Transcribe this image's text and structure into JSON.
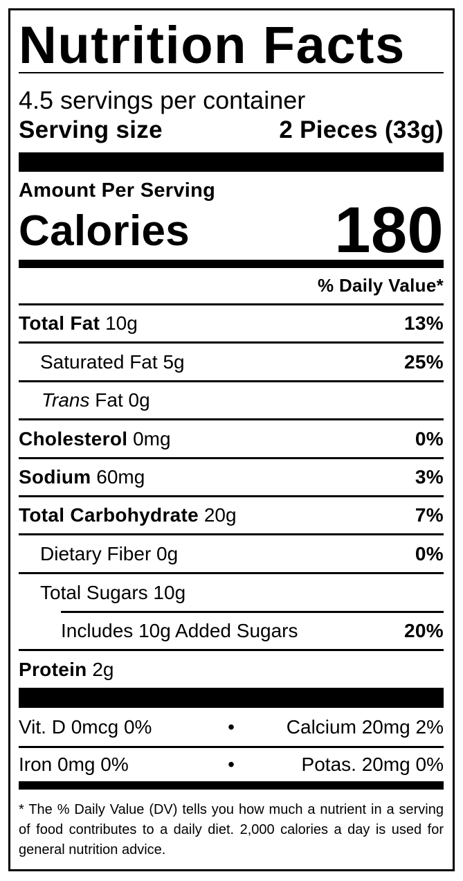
{
  "title": "Nutrition Facts",
  "servings_per_container": "4.5 servings per container",
  "serving_size_label": "Serving size",
  "serving_size_value": "2 Pieces (33g)",
  "amount_per_serving": "Amount Per Serving",
  "calories_label": "Calories",
  "calories_value": "180",
  "daily_value_header": "% Daily Value*",
  "nutrients": [
    {
      "label": "Total Fat",
      "amount": "10g",
      "dv": "13%"
    },
    {
      "label": "Saturated Fat",
      "amount": "5g",
      "dv": "25%"
    },
    {
      "label": "Trans",
      "label_rest": "Fat",
      "amount": "0g",
      "dv": ""
    },
    {
      "label": "Cholesterol",
      "amount": "0mg",
      "dv": "0%"
    },
    {
      "label": "Sodium",
      "amount": "60mg",
      "dv": "3%"
    },
    {
      "label": "Total Carbohydrate",
      "amount": "20g",
      "dv": "7%"
    },
    {
      "label": "Dietary Fiber",
      "amount": "0g",
      "dv": "0%"
    },
    {
      "label": "Total Sugars",
      "amount": "10g",
      "dv": ""
    },
    {
      "label": "Includes 10g Added Sugars",
      "amount": "",
      "dv": "20%"
    },
    {
      "label": "Protein",
      "amount": "2g",
      "dv": ""
    }
  ],
  "vitamins": [
    {
      "left": "Vit. D 0mcg 0%",
      "right": "Calcium 20mg 2%"
    },
    {
      "left": "Iron 0mg 0%",
      "right": "Potas. 20mg 0%"
    }
  ],
  "bullet": "•",
  "footnote": "* The % Daily Value (DV) tells you how much a nutrient in a serving of food contributes to a daily diet. 2,000 calories a day is used for general nutrition advice."
}
